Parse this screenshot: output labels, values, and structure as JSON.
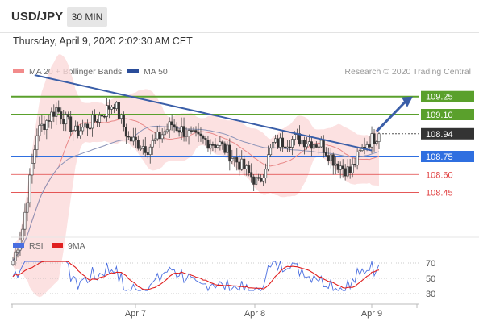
{
  "header": {
    "symbol": "USD/JPY",
    "timeframe": "30 MIN"
  },
  "timestamp": "Thursday, April 9, 2020 2:02:30 AM CET",
  "chart_data": {
    "type": "candlestick",
    "legend": [
      {
        "name": "MA 20 + Bollinger Bands",
        "color": "#f08080"
      },
      {
        "name": "MA 50",
        "color": "#2a4d9a"
      }
    ],
    "source": "Research © 2020 Trading Central",
    "x_tick_labels": [
      "Apr 7",
      "Apr 8",
      "Apr 9"
    ],
    "y_range": [
      107.6,
      109.7
    ],
    "current_price": "108.94",
    "levels": [
      {
        "label": "109.25",
        "value": 109.25,
        "color": "#5aa02c",
        "kind": "resistance"
      },
      {
        "label": "109.10",
        "value": 109.1,
        "color": "#5aa02c",
        "kind": "resistance"
      },
      {
        "label": "108.75",
        "value": 108.75,
        "color": "#2f6fe0",
        "kind": "pivot"
      },
      {
        "label": "108.60",
        "value": 108.6,
        "color": "#e04040",
        "kind": "support"
      },
      {
        "label": "108.45",
        "value": 108.45,
        "color": "#e04040",
        "kind": "support"
      }
    ],
    "indicator": {
      "legend": [
        {
          "name": "RSI",
          "color": "#4a6ee0"
        },
        {
          "name": "9MA",
          "color": "#e02020"
        }
      ],
      "y_tick_labels": [
        "70",
        "50",
        "30"
      ],
      "y_range": [
        20,
        80
      ]
    },
    "trendline": {
      "from": {
        "candle": 9,
        "price": 109.43
      },
      "to": {
        "candle": 149,
        "price": 108.8
      }
    },
    "projection": {
      "from": {
        "candle": 151,
        "price": 108.96
      },
      "to": {
        "candle": 170,
        "price": 109.25
      }
    }
  }
}
